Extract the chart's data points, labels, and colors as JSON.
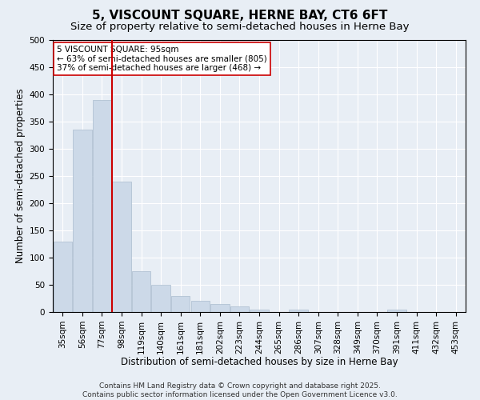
{
  "title": "5, VISCOUNT SQUARE, HERNE BAY, CT6 6FT",
  "subtitle": "Size of property relative to semi-detached houses in Herne Bay",
  "xlabel": "Distribution of semi-detached houses by size in Herne Bay",
  "ylabel": "Number of semi-detached properties",
  "categories": [
    "35sqm",
    "56sqm",
    "77sqm",
    "98sqm",
    "119sqm",
    "140sqm",
    "161sqm",
    "181sqm",
    "202sqm",
    "223sqm",
    "244sqm",
    "265sqm",
    "286sqm",
    "307sqm",
    "328sqm",
    "349sqm",
    "370sqm",
    "391sqm",
    "411sqm",
    "432sqm",
    "453sqm"
  ],
  "values": [
    130,
    335,
    390,
    240,
    75,
    50,
    30,
    20,
    15,
    10,
    5,
    0,
    5,
    0,
    0,
    0,
    0,
    5,
    0,
    0,
    0
  ],
  "bar_color": "#ccd9e8",
  "bar_edge_color": "#aabcce",
  "vline_index": 3,
  "vline_color": "#cc0000",
  "annotation_text": "5 VISCOUNT SQUARE: 95sqm\n← 63% of semi-detached houses are smaller (805)\n37% of semi-detached houses are larger (468) →",
  "annotation_box_color": "#ffffff",
  "annotation_box_edge": "#cc0000",
  "ylim": [
    0,
    500
  ],
  "yticks": [
    0,
    50,
    100,
    150,
    200,
    250,
    300,
    350,
    400,
    450,
    500
  ],
  "background_color": "#e8eef5",
  "plot_background": "#e8eef5",
  "footer": "Contains HM Land Registry data © Crown copyright and database right 2025.\nContains public sector information licensed under the Open Government Licence v3.0.",
  "title_fontsize": 11,
  "subtitle_fontsize": 9.5,
  "axis_label_fontsize": 8.5,
  "tick_fontsize": 7.5,
  "annotation_fontsize": 7.5,
  "footer_fontsize": 6.5
}
